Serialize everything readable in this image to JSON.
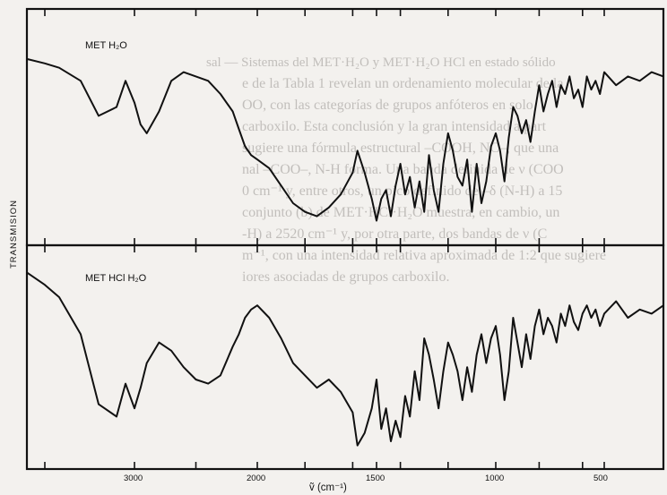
{
  "chart_data": [
    {
      "type": "line",
      "panel": "top",
      "label": "MET H₂O",
      "x": [
        3600,
        3500,
        3420,
        3300,
        3200,
        3100,
        3050,
        3000,
        2950,
        2900,
        2800,
        2700,
        2600,
        2500,
        2400,
        2300,
        2200,
        2150,
        2100,
        2050,
        2000,
        1950,
        1900,
        1850,
        1800,
        1750,
        1700,
        1650,
        1600,
        1580,
        1550,
        1520,
        1500,
        1480,
        1460,
        1440,
        1420,
        1400,
        1380,
        1360,
        1340,
        1320,
        1300,
        1280,
        1260,
        1240,
        1220,
        1200,
        1180,
        1160,
        1140,
        1120,
        1100,
        1080,
        1060,
        1040,
        1020,
        1000,
        980,
        960,
        940,
        920,
        900,
        880,
        860,
        840,
        820,
        800,
        780,
        760,
        740,
        720,
        700,
        680,
        660,
        640,
        620,
        600,
        580,
        560,
        540,
        520,
        500,
        480,
        460,
        440,
        420,
        400
      ],
      "y": [
        82,
        80,
        78,
        72,
        56,
        60,
        72,
        62,
        52,
        48,
        58,
        72,
        76,
        74,
        72,
        66,
        58,
        50,
        42,
        38,
        36,
        32,
        24,
        16,
        12,
        10,
        14,
        20,
        30,
        40,
        30,
        18,
        8,
        18,
        22,
        10,
        24,
        34,
        20,
        28,
        14,
        26,
        12,
        38,
        22,
        12,
        34,
        48,
        40,
        28,
        24,
        36,
        12,
        34,
        16,
        26,
        42,
        48,
        40,
        26,
        46,
        60,
        56,
        48,
        54,
        44,
        58,
        70,
        58,
        66,
        72,
        60,
        70,
        66,
        74,
        64,
        68,
        60,
        74,
        68,
        72,
        66,
        76,
        70,
        74,
        72,
        76,
        74
      ],
      "ylim": [
        0,
        100
      ]
    },
    {
      "type": "line",
      "panel": "bottom",
      "label": "MET HCl H₂O",
      "x": [
        3600,
        3500,
        3420,
        3300,
        3200,
        3100,
        3050,
        3000,
        2950,
        2900,
        2800,
        2700,
        2600,
        2500,
        2400,
        2300,
        2200,
        2150,
        2100,
        2050,
        2000,
        1950,
        1900,
        1850,
        1800,
        1750,
        1700,
        1650,
        1600,
        1580,
        1550,
        1520,
        1500,
        1480,
        1460,
        1440,
        1420,
        1400,
        1380,
        1360,
        1340,
        1320,
        1300,
        1280,
        1260,
        1240,
        1220,
        1200,
        1180,
        1160,
        1140,
        1120,
        1100,
        1080,
        1060,
        1040,
        1020,
        1000,
        980,
        960,
        940,
        920,
        900,
        880,
        860,
        840,
        820,
        800,
        780,
        760,
        740,
        720,
        700,
        680,
        660,
        640,
        620,
        600,
        580,
        560,
        540,
        520,
        500,
        480,
        460,
        440,
        420,
        400
      ],
      "y": [
        92,
        86,
        80,
        62,
        28,
        22,
        38,
        26,
        36,
        48,
        58,
        54,
        46,
        40,
        38,
        42,
        56,
        62,
        70,
        74,
        76,
        70,
        60,
        48,
        42,
        36,
        40,
        34,
        24,
        8,
        14,
        26,
        40,
        16,
        26,
        10,
        20,
        12,
        32,
        22,
        44,
        30,
        60,
        52,
        40,
        26,
        44,
        58,
        52,
        44,
        30,
        46,
        34,
        52,
        62,
        48,
        60,
        66,
        52,
        30,
        44,
        70,
        58,
        46,
        62,
        50,
        66,
        74,
        62,
        70,
        66,
        58,
        72,
        66,
        76,
        68,
        64,
        72,
        76,
        70,
        74,
        66,
        72,
        78,
        70,
        74,
        72,
        76
      ],
      "ylim": [
        0,
        100
      ]
    }
  ],
  "axis": {
    "ticks": [
      {
        "value": 3000,
        "label": "3000"
      },
      {
        "value": 2000,
        "label": "2000"
      },
      {
        "value": 1500,
        "label": "1500"
      },
      {
        "value": 1000,
        "label": "1000"
      },
      {
        "value": 500,
        "label": "500"
      }
    ],
    "xlabel": "ṽ (cm⁻¹)",
    "ylabel": "TRANSMISION"
  },
  "colors": {
    "ink": "#111111",
    "paper": "#f3f1ee",
    "bleed_text": "#9a9692"
  },
  "background_text": [
    "sal — Sistemas del MET·H₂O y MET·H₂O HCl en estado sólido",
    "e de la Tabla 1 revelan un ordenamiento molecular de la",
    "OO, con las categorías de grupos anfóteros en solo",
    "carboxilo. Esta conclusión y la gran intensidad a part",
    "sugiere una fórmula estructural –COOH, NC–, que una",
    "nal –COO–, N-H forma. Una banda definida de ν (COO",
    "0 cm⁻¹ y, entre otros, un pico definido de –δ (N-H) a 15",
    "conjunto (b) de MET·HCl·H₂O muestra, en cambio, un",
    "-H) a 2520 cm⁻¹ y, por otra parte, dos bandas de ν (C",
    "m⁻¹, con una intensidad relativa aproximada de 1:2 que sugiere",
    "iores asociadas de grupos carboxilo."
  ]
}
